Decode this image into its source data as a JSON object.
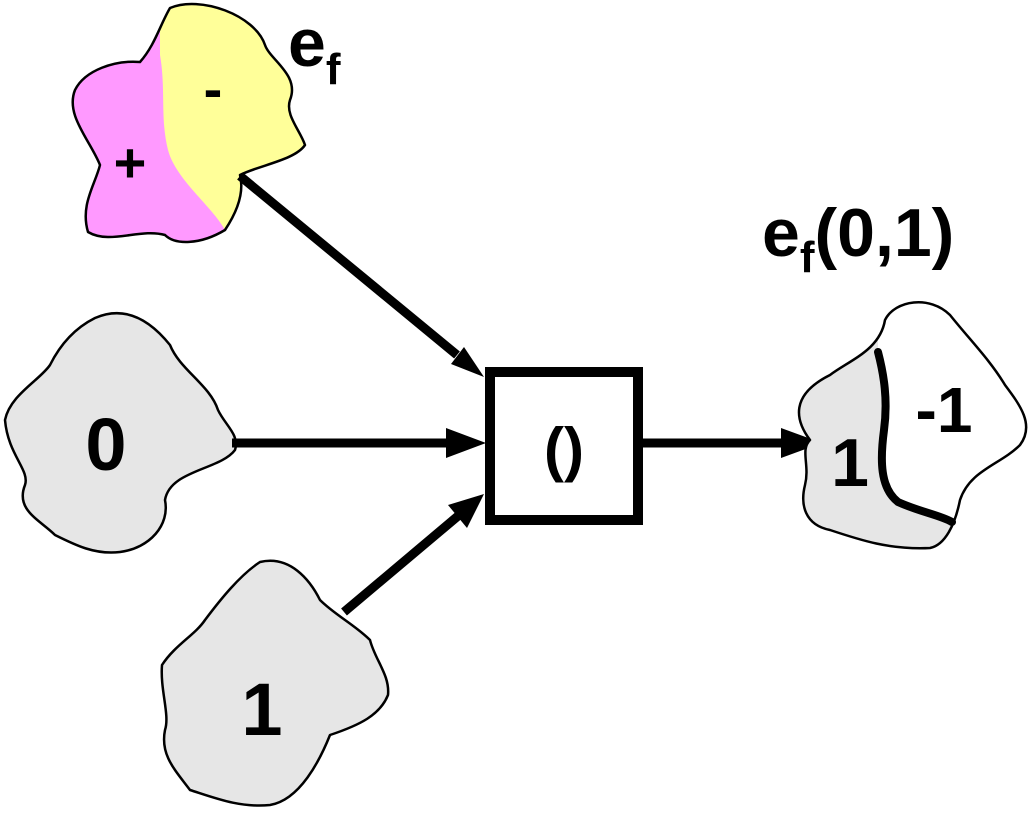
{
  "field_blob": {
    "name": "e",
    "subscript": "f",
    "positive_sign": "+",
    "negative_sign": "-",
    "positive_color": "#ff99ff",
    "negative_color": "#ffff99"
  },
  "input_zero": {
    "label": "0",
    "color": "#e6e6e6"
  },
  "input_one": {
    "label": "1",
    "color": "#e6e6e6"
  },
  "operator": {
    "label": "()"
  },
  "result": {
    "title_name": "e",
    "title_subscript": "f",
    "title_args": "(0,1)",
    "left_value": "1",
    "right_value": "-1",
    "left_color": "#e6e6e6",
    "right_color": "#ffffff"
  }
}
